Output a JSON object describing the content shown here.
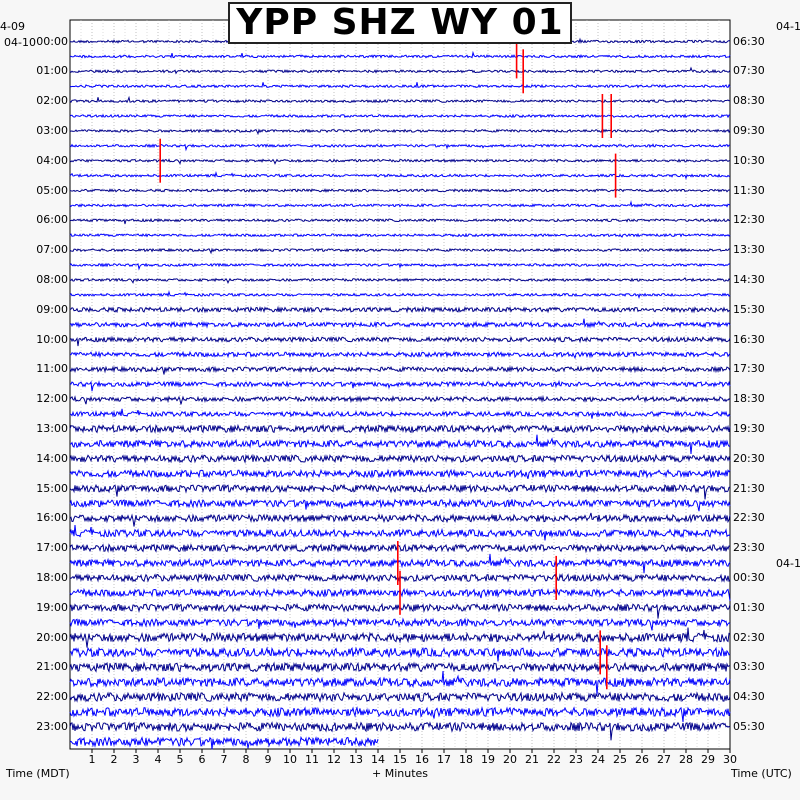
{
  "chart_data": {
    "type": "helicorder",
    "title": "YPP SHZ WY 01",
    "left_axis": {
      "label": "Time (MDT)",
      "dates": [
        "4-09",
        "04-10"
      ],
      "ticks": [
        "00:00",
        "01:00",
        "02:00",
        "03:00",
        "04:00",
        "05:00",
        "06:00",
        "07:00",
        "08:00",
        "09:00",
        "10:00",
        "11:00",
        "12:00",
        "13:00",
        "14:00",
        "15:00",
        "16:00",
        "17:00",
        "18:00",
        "19:00",
        "20:00",
        "21:00",
        "22:00",
        "23:00"
      ]
    },
    "right_axis": {
      "label": "Time (UTC)",
      "dates": [
        "04-1",
        "04-1"
      ],
      "ticks": [
        "06:30",
        "07:30",
        "08:30",
        "09:30",
        "10:30",
        "11:30",
        "12:30",
        "13:30",
        "14:30",
        "15:30",
        "16:30",
        "17:30",
        "18:30",
        "19:30",
        "20:30",
        "21:30",
        "22:30",
        "23:30",
        "00:30",
        "01:30",
        "02:30",
        "03:30",
        "04:30",
        "05:30"
      ]
    },
    "x_axis": {
      "label": "+ Minutes",
      "ticks": [
        1,
        2,
        3,
        4,
        5,
        6,
        7,
        8,
        9,
        10,
        11,
        12,
        13,
        14,
        15,
        16,
        17,
        18,
        19,
        20,
        21,
        22,
        23,
        24,
        25,
        26,
        27,
        28,
        29,
        30
      ],
      "range": [
        0,
        30
      ]
    },
    "trace_rows": 48,
    "row_duration_minutes": 30,
    "trace_colors": [
      "#00008b",
      "#0000ff"
    ],
    "event_color": "#ff0000",
    "last_trace_ends_at_minute": 14,
    "events": [
      {
        "row": 1,
        "minute": 20.3
      },
      {
        "row": 2,
        "minute": 20.6
      },
      {
        "row": 5,
        "minute": 24.2
      },
      {
        "row": 5,
        "minute": 24.6
      },
      {
        "row": 8,
        "minute": 4.1
      },
      {
        "row": 9,
        "minute": 24.8
      },
      {
        "row": 35,
        "minute": 14.9
      },
      {
        "row": 36,
        "minute": 22.1
      },
      {
        "row": 37,
        "minute": 15.0
      },
      {
        "row": 41,
        "minute": 24.1
      },
      {
        "row": 42,
        "minute": 24.4
      }
    ]
  }
}
